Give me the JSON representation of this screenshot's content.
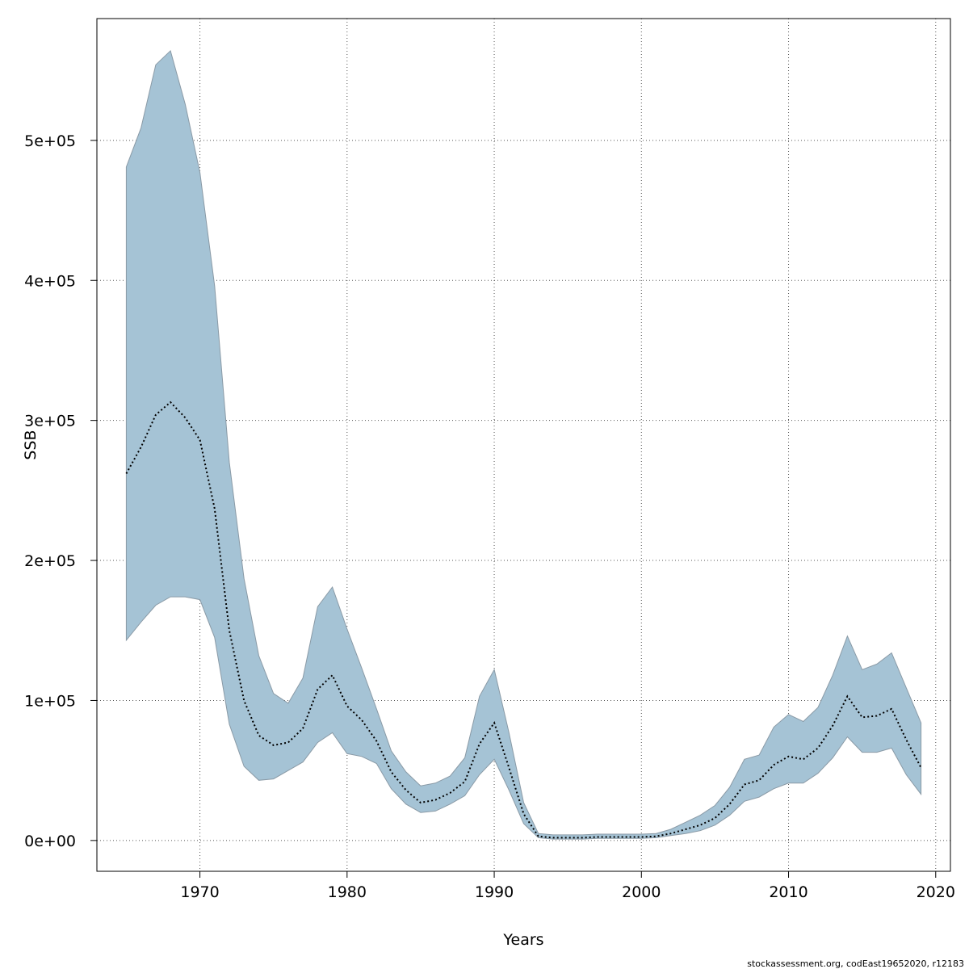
{
  "chart_data": {
    "type": "area",
    "xlabel": "Years",
    "ylabel": "SSB",
    "xlim": [
      1963,
      2021
    ],
    "ylim": [
      -22000,
      587000
    ],
    "grid": true,
    "x_ticks": [
      1970,
      1980,
      1990,
      2000,
      2010,
      2020
    ],
    "y_ticks": [
      0,
      100000,
      200000,
      300000,
      400000,
      500000
    ],
    "y_tick_labels": [
      "0e+00",
      "1e+05",
      "2e+05",
      "3e+05",
      "4e+05",
      "5e+05"
    ],
    "band_color": "#a5c3d5",
    "band_edge_color": "#8a9aa6",
    "line_color": "#000000",
    "x": [
      1965,
      1966,
      1967,
      1968,
      1969,
      1970,
      1971,
      1972,
      1973,
      1974,
      1975,
      1976,
      1977,
      1978,
      1979,
      1980,
      1981,
      1982,
      1983,
      1984,
      1985,
      1986,
      1987,
      1988,
      1989,
      1990,
      1991,
      1992,
      1993,
      1994,
      1995,
      1996,
      1997,
      1998,
      1999,
      2000,
      2001,
      2002,
      2003,
      2004,
      2005,
      2006,
      2007,
      2008,
      2009,
      2010,
      2011,
      2012,
      2013,
      2014,
      2015,
      2016,
      2017,
      2018,
      2019
    ],
    "series": [
      {
        "values": [
          262000,
          281000,
          304000,
          313000,
          302000,
          286000,
          237000,
          150000,
          100000,
          75000,
          68000,
          70000,
          80000,
          108000,
          118000,
          96000,
          86000,
          71000,
          49000,
          36000,
          27000,
          29000,
          34000,
          42000,
          69000,
          84000,
          52000,
          19000,
          3000,
          2000,
          2000,
          2000,
          2500,
          2500,
          2500,
          2500,
          3000,
          5000,
          8000,
          11000,
          16000,
          26000,
          40000,
          43000,
          54000,
          60000,
          58000,
          66000,
          82000,
          103000,
          88000,
          89000,
          94000,
          72000,
          52000
        ]
      },
      {
        "values": [
          481000,
          509000,
          554000,
          564000,
          526000,
          477000,
          396000,
          270000,
          187000,
          132000,
          105000,
          98000,
          116000,
          167000,
          181000,
          151000,
          123000,
          94000,
          64000,
          49000,
          39000,
          41000,
          46000,
          59000,
          103000,
          122000,
          77000,
          27000,
          5000,
          4000,
          4000,
          4000,
          4500,
          4500,
          4500,
          4500,
          5000,
          8000,
          13000,
          18000,
          25000,
          38000,
          58000,
          61000,
          81000,
          90000,
          85000,
          95000,
          118000,
          146000,
          122000,
          126000,
          134000,
          109000,
          84000
        ]
      },
      {
        "values": [
          143000,
          156000,
          168000,
          174000,
          174000,
          172000,
          145000,
          83000,
          53000,
          43000,
          44000,
          50000,
          56000,
          70000,
          77000,
          62000,
          60000,
          55000,
          37000,
          26000,
          20000,
          21000,
          26000,
          32000,
          47000,
          58000,
          36000,
          12000,
          2000,
          1000,
          1000,
          1000,
          1500,
          1500,
          1500,
          1500,
          2000,
          3500,
          5000,
          7000,
          11000,
          18000,
          28000,
          31000,
          37000,
          41000,
          41000,
          48000,
          59000,
          74000,
          63000,
          63000,
          66000,
          47000,
          33000
        ]
      }
    ]
  },
  "footer": {
    "text": "stockassessment.org, codEast19652020, r12183"
  }
}
